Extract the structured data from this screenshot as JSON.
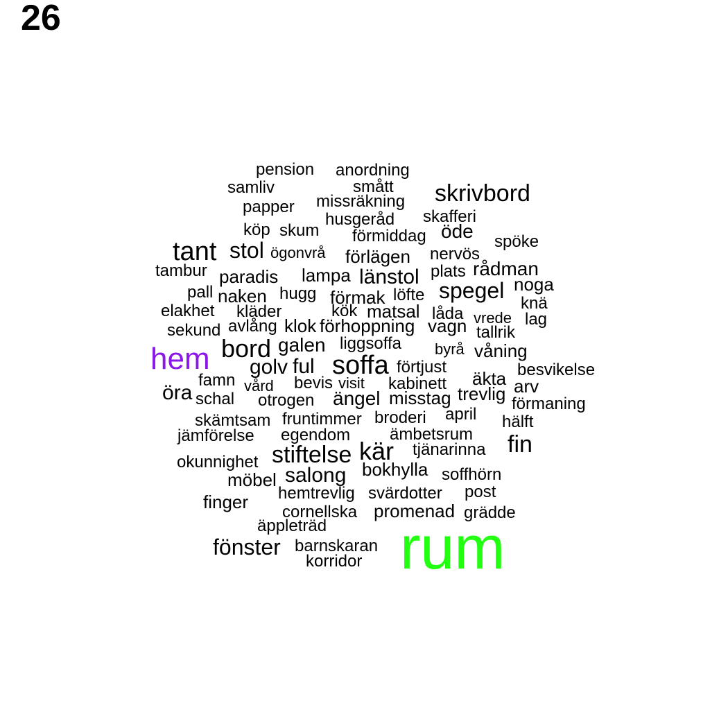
{
  "page_number": "26",
  "colors": {
    "default": "#000000",
    "hem": "#8a17e8",
    "rum": "#22ff11"
  },
  "words": [
    {
      "text": "pension"
    },
    {
      "text": "anordning"
    },
    {
      "text": "samliv"
    },
    {
      "text": "smått"
    },
    {
      "text": "skrivbord"
    },
    {
      "text": "papper"
    },
    {
      "text": "missräkning"
    },
    {
      "text": "skafferi"
    },
    {
      "text": "husgeråd"
    },
    {
      "text": "köp"
    },
    {
      "text": "skum"
    },
    {
      "text": "öde"
    },
    {
      "text": "förmiddag"
    },
    {
      "text": "spöke"
    },
    {
      "text": "tant"
    },
    {
      "text": "stol"
    },
    {
      "text": "ögonvrå"
    },
    {
      "text": "förlägen"
    },
    {
      "text": "nervös"
    },
    {
      "text": "tambur"
    },
    {
      "text": "paradis"
    },
    {
      "text": "lampa"
    },
    {
      "text": "länstol"
    },
    {
      "text": "plats"
    },
    {
      "text": "rådman"
    },
    {
      "text": "pall"
    },
    {
      "text": "naken"
    },
    {
      "text": "hugg"
    },
    {
      "text": "förmak"
    },
    {
      "text": "löfte"
    },
    {
      "text": "spegel"
    },
    {
      "text": "noga"
    },
    {
      "text": "knä"
    },
    {
      "text": "elakhet"
    },
    {
      "text": "kläder"
    },
    {
      "text": "kök"
    },
    {
      "text": "matsal"
    },
    {
      "text": "låda"
    },
    {
      "text": "vrede"
    },
    {
      "text": "lag"
    },
    {
      "text": "sekund"
    },
    {
      "text": "avlång"
    },
    {
      "text": "klok"
    },
    {
      "text": "förhoppning"
    },
    {
      "text": "vagn"
    },
    {
      "text": "tallrik"
    },
    {
      "text": "bord"
    },
    {
      "text": "galen"
    },
    {
      "text": "liggsoffa"
    },
    {
      "text": "byrå"
    },
    {
      "text": "våning"
    },
    {
      "text": "hem"
    },
    {
      "text": "golv"
    },
    {
      "text": "ful"
    },
    {
      "text": "soffa"
    },
    {
      "text": "förtjust"
    },
    {
      "text": "besvikelse"
    },
    {
      "text": "famn"
    },
    {
      "text": "vård"
    },
    {
      "text": "bevis"
    },
    {
      "text": "visit"
    },
    {
      "text": "kabinett"
    },
    {
      "text": "äkta"
    },
    {
      "text": "arv"
    },
    {
      "text": "öra"
    },
    {
      "text": "schal"
    },
    {
      "text": "otrogen"
    },
    {
      "text": "ängel"
    },
    {
      "text": "misstag"
    },
    {
      "text": "trevlig"
    },
    {
      "text": "förmaning"
    },
    {
      "text": "skämtsam"
    },
    {
      "text": "fruntimmer"
    },
    {
      "text": "broderi"
    },
    {
      "text": "april"
    },
    {
      "text": "hälft"
    },
    {
      "text": "jämförelse"
    },
    {
      "text": "egendom"
    },
    {
      "text": "ämbetsrum"
    },
    {
      "text": "fin"
    },
    {
      "text": "stiftelse"
    },
    {
      "text": "kär"
    },
    {
      "text": "tjänarinna"
    },
    {
      "text": "okunnighet"
    },
    {
      "text": "möbel"
    },
    {
      "text": "salong"
    },
    {
      "text": "bokhylla"
    },
    {
      "text": "soffhörn"
    },
    {
      "text": "finger"
    },
    {
      "text": "hemtrevlig"
    },
    {
      "text": "svärdotter"
    },
    {
      "text": "post"
    },
    {
      "text": "cornellska"
    },
    {
      "text": "promenad"
    },
    {
      "text": "grädde"
    },
    {
      "text": "äppleträd"
    },
    {
      "text": "rum"
    },
    {
      "text": "fönster"
    },
    {
      "text": "barnskaran"
    },
    {
      "text": "korridor"
    }
  ]
}
